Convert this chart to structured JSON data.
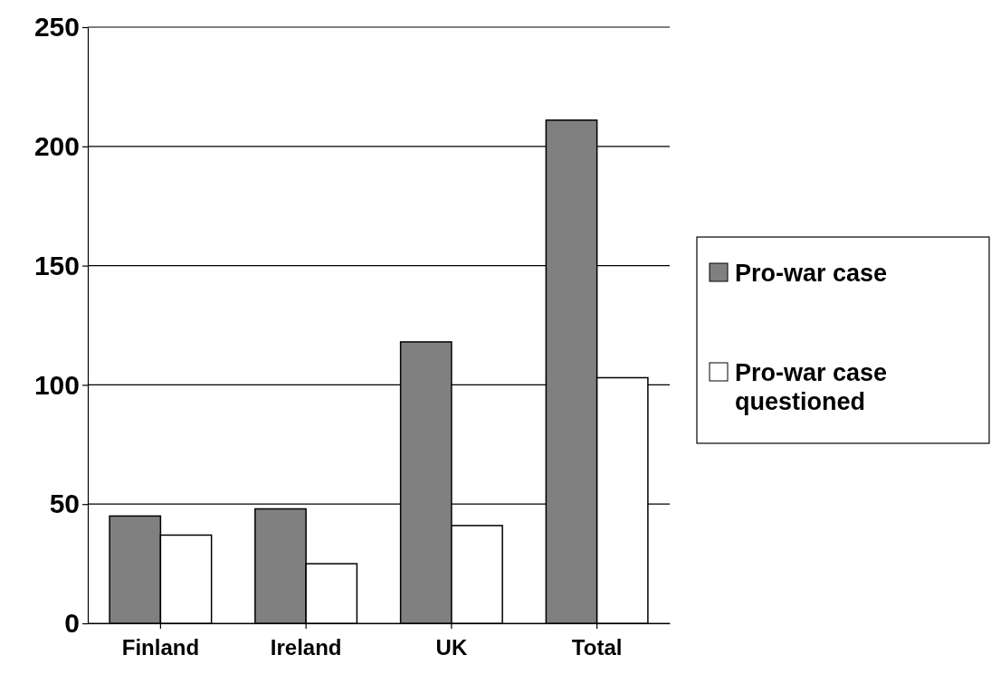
{
  "chart_data": {
    "type": "bar",
    "categories": [
      "Finland",
      "Ireland",
      "UK",
      "Total"
    ],
    "series": [
      {
        "name": "Pro-war case",
        "color": "#808080",
        "values": [
          45,
          48,
          118,
          211
        ]
      },
      {
        "name": "Pro-war case questioned",
        "color": "#ffffff",
        "values": [
          37,
          25,
          41,
          103
        ]
      }
    ],
    "ylim": [
      0,
      250
    ],
    "yticks": [
      0,
      50,
      100,
      150,
      200,
      250
    ],
    "grid": "y",
    "legend": "right"
  }
}
